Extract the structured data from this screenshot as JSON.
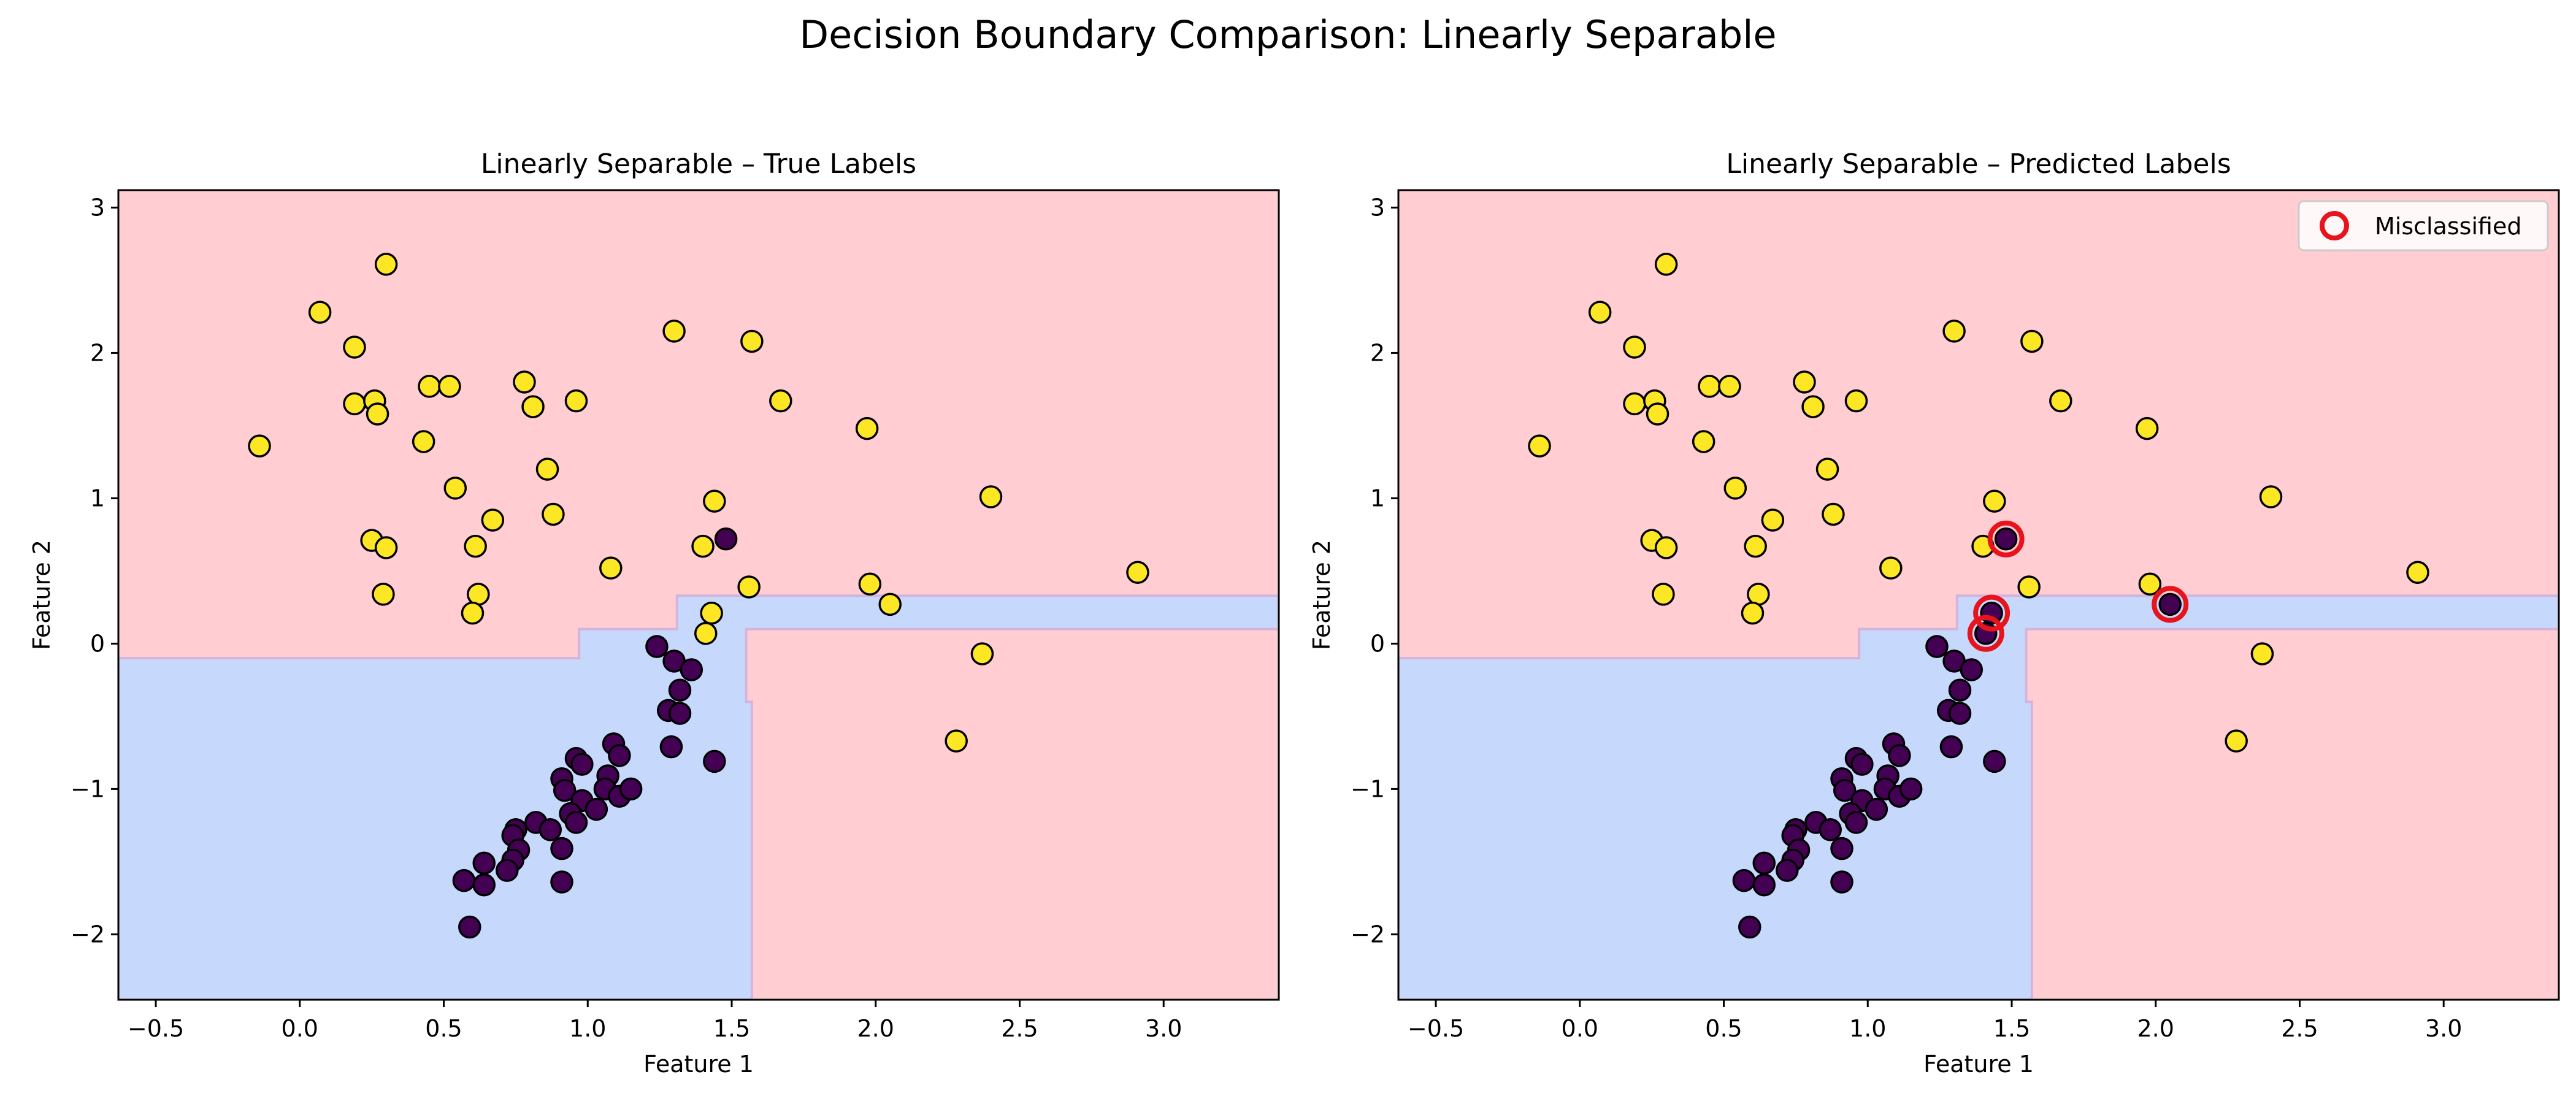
{
  "figure": {
    "title": "Decision Boundary Comparison: Linearly Separable"
  },
  "colors": {
    "region_class0": "#ffcdd2",
    "region_class1": "#c6d9fd",
    "boundary_line": "#d4b4dc",
    "point_class0": "#fde725",
    "point_class1": "#440154",
    "point_edge": "#000000",
    "misclassified_ring": "#e8141c"
  },
  "chart_data": [
    {
      "type": "scatter",
      "title": "Linearly Separable – True Labels",
      "xlabel": "Feature 1",
      "ylabel": "Feature 2",
      "xlim": [
        -0.63,
        3.4
      ],
      "ylim": [
        -2.45,
        3.12
      ],
      "xticks": [
        -0.5,
        0.0,
        0.5,
        1.0,
        1.5,
        2.0,
        2.5,
        3.0
      ],
      "xtick_labels": [
        "−0.5",
        "0.0",
        "0.5",
        "1.0",
        "1.5",
        "2.0",
        "2.5",
        "3.0"
      ],
      "yticks": [
        -2,
        -1,
        0,
        1,
        2,
        3
      ],
      "ytick_labels": [
        "−2",
        "−1",
        "0",
        "1",
        "2",
        "3"
      ],
      "grid": false,
      "point_class": "true",
      "decision_region_class1": [
        [
          -0.63,
          -2.45
        ],
        [
          1.57,
          -2.45
        ],
        [
          1.57,
          -0.4
        ],
        [
          1.55,
          -0.4
        ],
        [
          1.55,
          0.1
        ],
        [
          1.65,
          0.1
        ],
        [
          1.65,
          0.1
        ],
        [
          1.65,
          0.1
        ],
        [
          3.4,
          0.1
        ],
        [
          3.4,
          0.33
        ],
        [
          1.31,
          0.33
        ],
        [
          1.31,
          0.1
        ],
        [
          0.97,
          0.1
        ],
        [
          0.97,
          -0.1
        ],
        [
          -0.63,
          -0.1
        ]
      ],
      "points": [
        {
          "x": -0.14,
          "y": 1.36,
          "cls": 0
        },
        {
          "x": 0.07,
          "y": 2.28,
          "cls": 0
        },
        {
          "x": 0.19,
          "y": 2.04,
          "cls": 0
        },
        {
          "x": 0.19,
          "y": 1.65,
          "cls": 0
        },
        {
          "x": 0.26,
          "y": 1.67,
          "cls": 0
        },
        {
          "x": 0.27,
          "y": 1.58,
          "cls": 0
        },
        {
          "x": 0.3,
          "y": 2.61,
          "cls": 0
        },
        {
          "x": 0.25,
          "y": 0.71,
          "cls": 0
        },
        {
          "x": 0.3,
          "y": 0.66,
          "cls": 0
        },
        {
          "x": 0.29,
          "y": 0.34,
          "cls": 0
        },
        {
          "x": 0.43,
          "y": 1.39,
          "cls": 0
        },
        {
          "x": 0.45,
          "y": 1.77,
          "cls": 0
        },
        {
          "x": 0.52,
          "y": 1.77,
          "cls": 0
        },
        {
          "x": 0.54,
          "y": 1.07,
          "cls": 0
        },
        {
          "x": 0.61,
          "y": 0.67,
          "cls": 0
        },
        {
          "x": 0.62,
          "y": 0.34,
          "cls": 0
        },
        {
          "x": 0.6,
          "y": 0.21,
          "cls": 0
        },
        {
          "x": 0.67,
          "y": 0.85,
          "cls": 0
        },
        {
          "x": 0.78,
          "y": 1.8,
          "cls": 0
        },
        {
          "x": 0.81,
          "y": 1.63,
          "cls": 0
        },
        {
          "x": 0.86,
          "y": 1.2,
          "cls": 0
        },
        {
          "x": 0.88,
          "y": 0.89,
          "cls": 0
        },
        {
          "x": 0.96,
          "y": 1.67,
          "cls": 0
        },
        {
          "x": 1.08,
          "y": 0.52,
          "cls": 0
        },
        {
          "x": 1.3,
          "y": 2.15,
          "cls": 0
        },
        {
          "x": 1.4,
          "y": 0.67,
          "cls": 0
        },
        {
          "x": 1.44,
          "y": 0.98,
          "cls": 0
        },
        {
          "x": 1.43,
          "y": 0.21,
          "cls": 0
        },
        {
          "x": 1.41,
          "y": 0.07,
          "cls": 0
        },
        {
          "x": 1.48,
          "y": 0.72,
          "cls": 1
        },
        {
          "x": 1.57,
          "y": 2.08,
          "cls": 0
        },
        {
          "x": 1.56,
          "y": 0.39,
          "cls": 0
        },
        {
          "x": 1.67,
          "y": 1.67,
          "cls": 0
        },
        {
          "x": 1.97,
          "y": 1.48,
          "cls": 0
        },
        {
          "x": 1.98,
          "y": 0.41,
          "cls": 0
        },
        {
          "x": 2.05,
          "y": 0.27,
          "cls": 0
        },
        {
          "x": 2.28,
          "y": -0.67,
          "cls": 0
        },
        {
          "x": 2.37,
          "y": -0.07,
          "cls": 0
        },
        {
          "x": 2.4,
          "y": 1.01,
          "cls": 0
        },
        {
          "x": 2.91,
          "y": 0.49,
          "cls": 0
        },
        {
          "x": 1.24,
          "y": -0.02,
          "cls": 1
        },
        {
          "x": 1.3,
          "y": -0.12,
          "cls": 1
        },
        {
          "x": 1.36,
          "y": -0.18,
          "cls": 1
        },
        {
          "x": 1.32,
          "y": -0.32,
          "cls": 1
        },
        {
          "x": 1.28,
          "y": -0.46,
          "cls": 1
        },
        {
          "x": 1.32,
          "y": -0.48,
          "cls": 1
        },
        {
          "x": 1.29,
          "y": -0.71,
          "cls": 1
        },
        {
          "x": 1.44,
          "y": -0.81,
          "cls": 1
        },
        {
          "x": 1.09,
          "y": -0.69,
          "cls": 1
        },
        {
          "x": 1.11,
          "y": -0.77,
          "cls": 1
        },
        {
          "x": 0.96,
          "y": -0.79,
          "cls": 1
        },
        {
          "x": 0.98,
          "y": -0.83,
          "cls": 1
        },
        {
          "x": 0.91,
          "y": -0.93,
          "cls": 1
        },
        {
          "x": 1.07,
          "y": -0.91,
          "cls": 1
        },
        {
          "x": 0.92,
          "y": -1.01,
          "cls": 1
        },
        {
          "x": 1.06,
          "y": -1.0,
          "cls": 1
        },
        {
          "x": 1.11,
          "y": -1.05,
          "cls": 1
        },
        {
          "x": 1.15,
          "y": -1.0,
          "cls": 1
        },
        {
          "x": 0.98,
          "y": -1.08,
          "cls": 1
        },
        {
          "x": 1.03,
          "y": -1.14,
          "cls": 1
        },
        {
          "x": 0.94,
          "y": -1.17,
          "cls": 1
        },
        {
          "x": 0.96,
          "y": -1.23,
          "cls": 1
        },
        {
          "x": 0.82,
          "y": -1.23,
          "cls": 1
        },
        {
          "x": 0.87,
          "y": -1.28,
          "cls": 1
        },
        {
          "x": 0.75,
          "y": -1.28,
          "cls": 1
        },
        {
          "x": 0.74,
          "y": -1.32,
          "cls": 1
        },
        {
          "x": 0.76,
          "y": -1.42,
          "cls": 1
        },
        {
          "x": 0.74,
          "y": -1.49,
          "cls": 1
        },
        {
          "x": 0.91,
          "y": -1.41,
          "cls": 1
        },
        {
          "x": 0.64,
          "y": -1.51,
          "cls": 1
        },
        {
          "x": 0.72,
          "y": -1.56,
          "cls": 1
        },
        {
          "x": 0.57,
          "y": -1.63,
          "cls": 1
        },
        {
          "x": 0.64,
          "y": -1.66,
          "cls": 1
        },
        {
          "x": 0.91,
          "y": -1.64,
          "cls": 1
        },
        {
          "x": 0.59,
          "y": -1.95,
          "cls": 1
        }
      ]
    },
    {
      "type": "scatter",
      "title": "Linearly Separable – Predicted Labels",
      "xlabel": "Feature 1",
      "ylabel": "Feature 2",
      "xlim": [
        -0.63,
        3.4
      ],
      "ylim": [
        -2.45,
        3.12
      ],
      "xticks": [
        -0.5,
        0.0,
        0.5,
        1.0,
        1.5,
        2.0,
        2.5,
        3.0
      ],
      "xtick_labels": [
        "−0.5",
        "0.0",
        "0.5",
        "1.0",
        "1.5",
        "2.0",
        "2.5",
        "3.0"
      ],
      "yticks": [
        -2,
        -1,
        0,
        1,
        2,
        3
      ],
      "ytick_labels": [
        "−2",
        "−1",
        "0",
        "1",
        "2",
        "3"
      ],
      "grid": false,
      "point_class": "predicted",
      "legend": {
        "placement": "top-right",
        "entries": [
          "Misclassified"
        ]
      },
      "misclassified": [
        {
          "x": 1.48,
          "y": 0.72
        },
        {
          "x": 1.43,
          "y": 0.21
        },
        {
          "x": 1.41,
          "y": 0.07
        },
        {
          "x": 2.05,
          "y": 0.27
        }
      ],
      "predicted_overrides": [
        {
          "x": 1.48,
          "y": 0.72,
          "cls": 1
        },
        {
          "x": 1.43,
          "y": 0.21,
          "cls": 1
        },
        {
          "x": 1.41,
          "y": 0.07,
          "cls": 1
        },
        {
          "x": 2.05,
          "y": 0.27,
          "cls": 1
        }
      ]
    }
  ]
}
